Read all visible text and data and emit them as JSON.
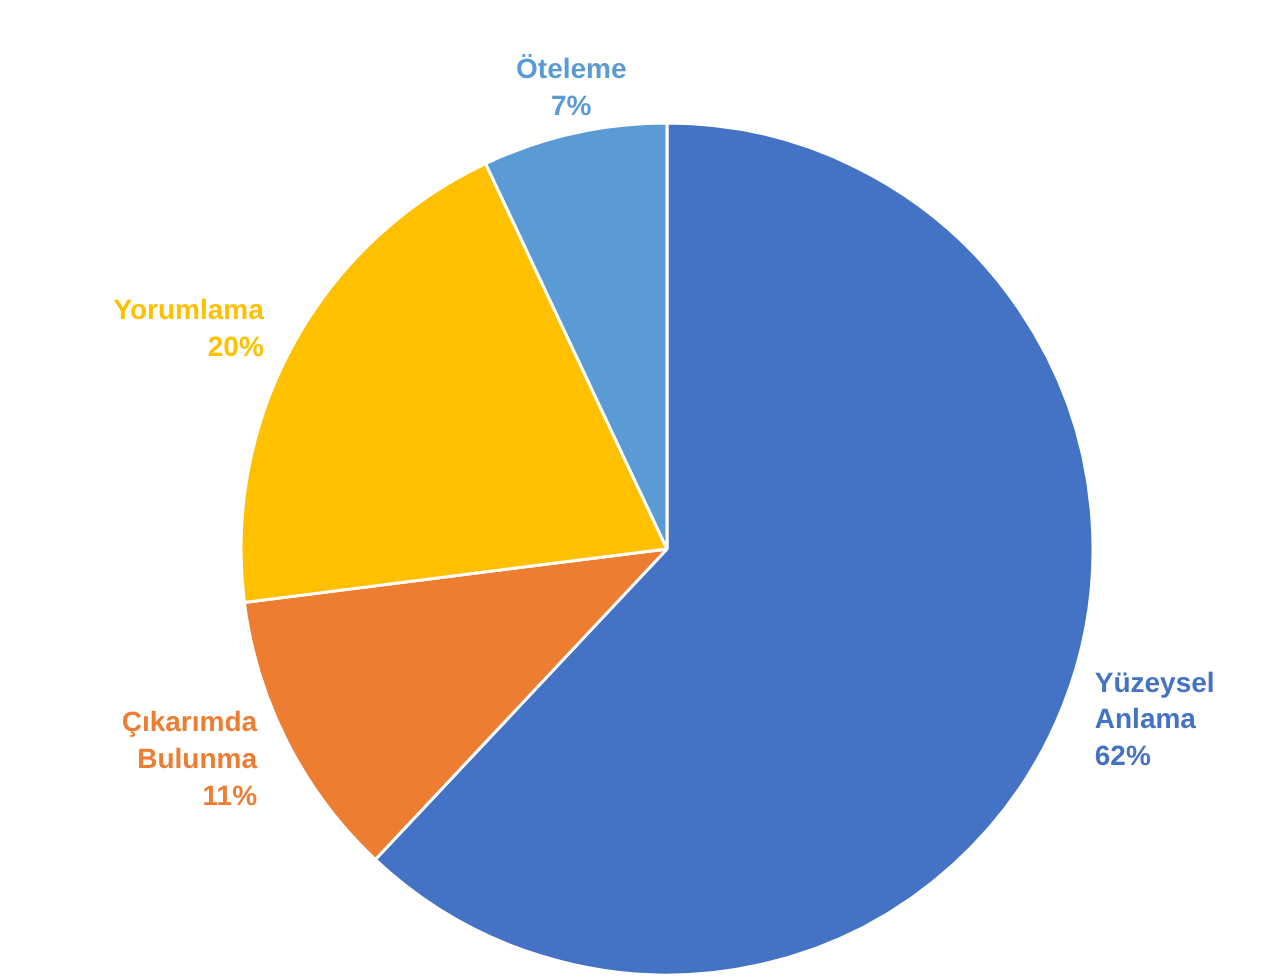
{
  "chart_data": {
    "type": "pie",
    "categories": [
      "Yüzeysel Anlama",
      "Çıkarımda Bulunma",
      "Yorumlama",
      "Öteleme"
    ],
    "values": [
      62,
      11,
      20,
      7
    ],
    "value_labels": [
      "62%",
      "11%",
      "20%",
      "7%"
    ],
    "colors": [
      "#4472c4",
      "#ed7d31",
      "#ffc000",
      "#5b9bd5"
    ],
    "legend": false
  }
}
